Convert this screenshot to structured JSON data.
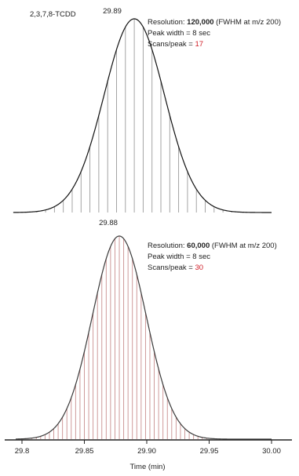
{
  "colors": {
    "top_stick": "#9a9a9a",
    "top_curve": "#111111",
    "bottom_stick": "#c98f8f",
    "bottom_curve": "#3a3a3a",
    "highlight": "#d0202a"
  },
  "chart_data": [
    {
      "type": "line",
      "compound_label": "2,3,7,8-TCDD",
      "peak_label": "29.89",
      "apex": 29.89,
      "scans_per_peak": 17,
      "annotation": {
        "resolution_prefix": "Resolution: ",
        "resolution_value": "120,000",
        "resolution_suffix": " (FWHM at m/z 200)",
        "peak_width": "Peak width = 8 sec",
        "scans_prefix": "Scans/peak = ",
        "scans_value": "17"
      },
      "xlim": [
        29.79,
        30.01
      ],
      "ylim": [
        0,
        1.05
      ],
      "grid": false
    },
    {
      "type": "line",
      "peak_label": "29.88",
      "apex": 29.878,
      "scans_per_peak": 30,
      "annotation": {
        "resolution_prefix": "Resolution: ",
        "resolution_value": "60,000",
        "resolution_suffix": " (FWHM at m/z 200)",
        "peak_width": "Peak width = 8 sec",
        "scans_prefix": "Scans/peak = ",
        "scans_value": "30"
      },
      "x_ticks": [
        "29.8",
        "29.85",
        "29.90",
        "29.95",
        "30.00"
      ],
      "xlabel": "Time (min)",
      "xlim": [
        29.79,
        30.01
      ],
      "ylim": [
        0,
        1.05
      ],
      "grid": false
    }
  ]
}
